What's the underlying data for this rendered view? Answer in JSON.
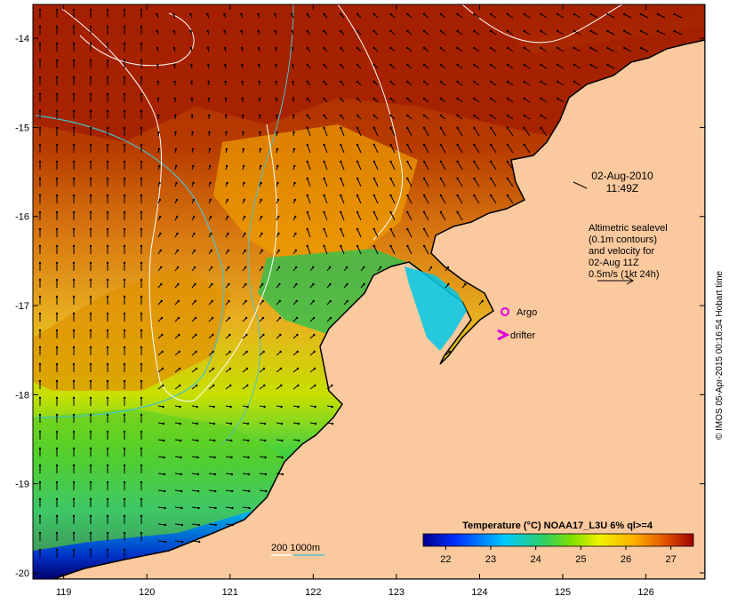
{
  "map": {
    "date_label": "02-Aug-2010",
    "time_label": "11:49Z",
    "altimetry_note": [
      "Altimetric sealevel",
      "(0.1m contours)",
      "and velocity for",
      "02-Aug 11Z",
      "0.5m/s (1kt 24h)"
    ],
    "legend_argo": "Argo",
    "legend_drifter": "drifter",
    "bathymetry_label": "200  1000m",
    "colorbar_title": "Temperature (°C) NOAA17_L3U 6% ql>=4",
    "colorbar_ticks": [
      "22",
      "23",
      "24",
      "25",
      "26",
      "27"
    ],
    "x_ticks": [
      "119",
      "120",
      "121",
      "122",
      "123",
      "124",
      "125",
      "126"
    ],
    "y_ticks": [
      "-14",
      "-15",
      "-16",
      "-17",
      "-18",
      "-19",
      "-20"
    ],
    "credit": "© IMOS 05-Apr-2015 00:16:54 Hobart time",
    "extent": {
      "lon_min": 118.63,
      "lon_max": 126.71,
      "lat_min": -20.07,
      "lat_max": -13.62
    }
  },
  "colors": {
    "land": "#fbc99e",
    "warm": "#a52000",
    "mid": "#e08a10",
    "cool": "#0d2a9a",
    "contour_1000": "#49c3c8",
    "argo": "#e000e0"
  }
}
